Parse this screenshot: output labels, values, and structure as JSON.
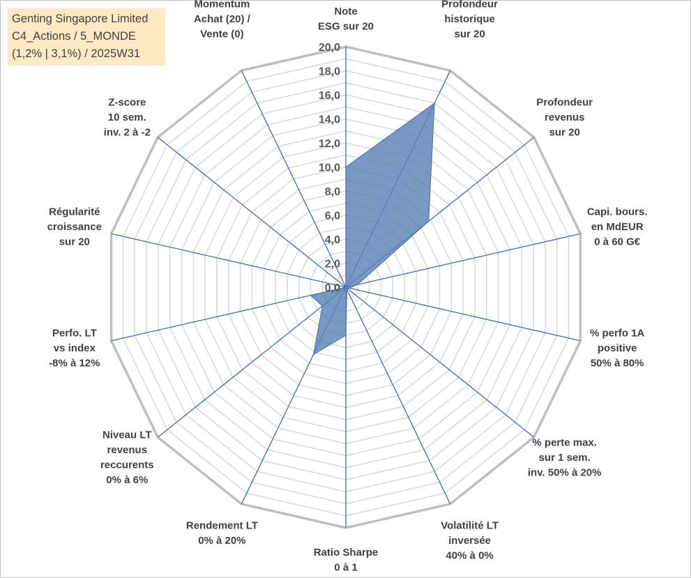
{
  "title_lines": [
    "Genting Singapore Limited",
    "C4_Actions / 5_MONDE",
    "(1,2% | 3,1%) / 2025W31"
  ],
  "chart_data": {
    "type": "radar",
    "rmin": 0,
    "rmax": 20,
    "tick_step": 2,
    "ticks": [
      "0,0",
      "2,0",
      "4,0",
      "6,0",
      "8,0",
      "10,0",
      "12,0",
      "14,0",
      "16,0",
      "18,0",
      "20,0"
    ],
    "axes": [
      {
        "label": [
          "Note",
          "ESG sur 20"
        ],
        "value": 10.0
      },
      {
        "label": [
          "Profondeur",
          "historique",
          "sur 20"
        ],
        "value": 17.0
      },
      {
        "label": [
          "Profondeur",
          "revenus",
          "sur 20"
        ],
        "value": 8.8
      },
      {
        "label": [
          "Capi. bours.",
          "en MdEUR",
          "0 à 60 G€"
        ],
        "value": 1.0
      },
      {
        "label": [
          "% perfo 1A",
          "positive",
          "50% à 80%"
        ],
        "value": 0.3
      },
      {
        "label": [
          "% perte max.",
          "sur 1 sem.",
          "inv. 50% à 20%"
        ],
        "value": 0.2
      },
      {
        "label": [
          "Volatilité LT",
          "inversée",
          "40% à 0%"
        ],
        "value": 0.2
      },
      {
        "label": [
          "Ratio Sharpe",
          "0 à 1"
        ],
        "value": 4.0
      },
      {
        "label": [
          "Rendement LT",
          "0% à 20%"
        ],
        "value": 6.2
      },
      {
        "label": [
          "Niveau LT",
          "revenus",
          "reccurents",
          "0% à 6%"
        ],
        "value": 2.5
      },
      {
        "label": [
          "Perfo. LT",
          "vs index",
          "-8% à 12%"
        ],
        "value": 3.0
      },
      {
        "label": [
          "Régularité",
          "croissance",
          "sur 20"
        ],
        "value": 0.0
      },
      {
        "label": [
          "Z-score",
          "10 sem.",
          "inv. 2 à -2"
        ],
        "value": 0.0
      },
      {
        "label": [
          "Momentum",
          "Achat (20) /",
          "Vente (0)"
        ],
        "value": 0.0
      }
    ],
    "series": [
      {
        "values": [
          10.0,
          17.0,
          8.8,
          1.0,
          0.3,
          0.2,
          0.2,
          4.0,
          6.2,
          2.5,
          3.0,
          0.0,
          0.0,
          0.0
        ]
      }
    ],
    "colors": {
      "fill": "#5b82b5",
      "stroke": "#4a72aa",
      "grid": "#d9d9d9",
      "outer": "#bfbfbf",
      "spoke": "#3d6bb3"
    }
  }
}
